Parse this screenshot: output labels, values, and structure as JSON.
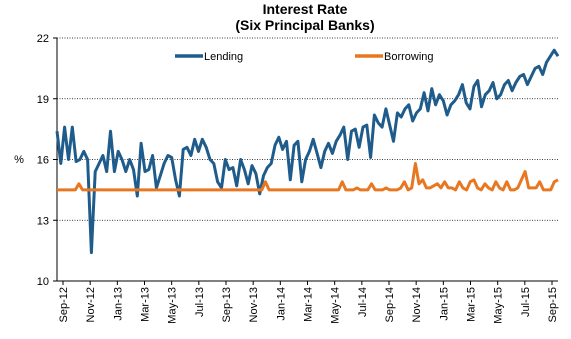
{
  "chart_data": {
    "type": "line",
    "title": "Interest Rate",
    "subtitle": "(Six Principal Banks)",
    "xlabel": "",
    "ylabel": "%",
    "ylim": [
      10,
      22
    ],
    "yticks": [
      10,
      13,
      16,
      19,
      22
    ],
    "grid": "horizontal dotted",
    "legend_position": "top",
    "x_tick_labels": [
      "Sep-12",
      "Nov-12",
      "Jan-13",
      "Mar-13",
      "May-13",
      "Jul-13",
      "Sep-13",
      "Nov-13",
      "Jan-14",
      "Mar-14",
      "May-14",
      "Jul-14",
      "Sep-14",
      "Nov-14",
      "Jan-15",
      "Mar-15",
      "May-15",
      "Jul-15",
      "Sep-15"
    ],
    "series": [
      {
        "name": "Lending",
        "color": "#1f5c8b",
        "values": [
          17.4,
          15.8,
          17.6,
          16.0,
          17.6,
          15.9,
          16.0,
          16.4,
          16.0,
          11.4,
          15.4,
          15.8,
          16.2,
          15.4,
          17.4,
          15.4,
          16.4,
          16.0,
          15.4,
          16.0,
          15.5,
          14.2,
          16.8,
          15.4,
          15.5,
          16.2,
          14.6,
          15.2,
          15.8,
          16.2,
          16.1,
          15.0,
          14.2,
          16.5,
          16.6,
          16.2,
          17.0,
          16.4,
          17.0,
          16.6,
          16.0,
          15.8,
          14.9,
          14.6,
          16.0,
          15.5,
          15.6,
          14.7,
          16.0,
          15.5,
          14.8,
          15.7,
          15.3,
          14.3,
          15.2,
          15.6,
          15.8,
          16.7,
          17.1,
          16.5,
          16.9,
          15.0,
          16.7,
          16.9,
          14.9,
          16.0,
          16.4,
          17.0,
          16.3,
          15.6,
          16.4,
          16.8,
          16.3,
          16.9,
          17.2,
          17.6,
          16.0,
          17.4,
          17.5,
          16.6,
          17.6,
          17.7,
          16.1,
          18.2,
          17.8,
          17.6,
          18.5,
          17.7,
          16.9,
          18.3,
          18.1,
          18.5,
          18.7,
          17.9,
          18.3,
          18.5,
          19.3,
          18.4,
          19.5,
          18.7,
          19.2,
          18.9,
          18.2,
          18.7,
          18.9,
          19.2,
          19.7,
          18.8,
          18.5,
          19.6,
          19.9,
          18.6,
          19.2,
          19.4,
          19.8,
          19.0,
          19.2,
          19.7,
          19.9,
          19.4,
          19.8,
          20.1,
          20.2,
          19.7,
          20.1,
          20.5,
          20.6,
          20.2,
          20.8,
          21.1,
          21.4,
          21.1
        ],
        "note_values_monthly_approx": ""
      },
      {
        "name": "Borrowing",
        "color": "#e87722",
        "values": [
          14.5,
          14.5,
          14.5,
          14.5,
          14.5,
          14.5,
          14.8,
          14.5,
          14.5,
          14.5,
          14.5,
          14.5,
          14.5,
          14.5,
          14.5,
          14.5,
          14.5,
          14.5,
          14.5,
          14.5,
          14.5,
          14.5,
          14.5,
          14.5,
          14.5,
          14.5,
          14.5,
          14.5,
          14.5,
          14.5,
          14.5,
          14.5,
          14.5,
          14.5,
          14.5,
          14.5,
          14.5,
          14.5,
          14.5,
          14.5,
          14.5,
          14.5,
          14.5,
          14.5,
          14.5,
          14.5,
          14.5,
          14.5,
          14.5,
          14.5,
          14.5,
          14.5,
          14.5,
          14.5,
          14.5,
          14.5,
          14.5,
          14.9,
          14.5,
          14.5,
          14.5,
          14.5,
          14.5,
          14.5,
          14.5,
          14.5,
          14.5,
          14.5,
          14.5,
          14.5,
          14.5,
          14.5,
          14.5,
          14.5,
          14.5,
          14.5,
          14.5,
          14.5,
          14.9,
          14.5,
          14.5,
          14.5,
          14.6,
          14.5,
          14.5,
          14.5,
          14.8,
          14.5,
          14.5,
          14.5,
          14.6,
          14.5,
          14.5,
          14.5,
          14.6,
          14.9,
          14.5,
          14.6,
          15.8,
          14.8,
          15.0,
          14.6,
          14.6,
          14.7,
          14.8,
          14.6,
          14.9,
          14.6,
          14.6,
          14.5,
          14.9,
          14.6,
          14.5,
          14.9,
          15.0,
          14.6,
          14.5,
          14.8,
          14.6,
          14.5,
          14.9,
          14.6,
          14.5,
          14.9,
          14.5,
          14.5,
          14.6,
          15.0,
          15.4,
          14.6,
          14.6,
          14.6,
          14.9,
          14.5,
          14.5,
          14.5,
          14.9,
          15.0
        ]
      }
    ]
  }
}
